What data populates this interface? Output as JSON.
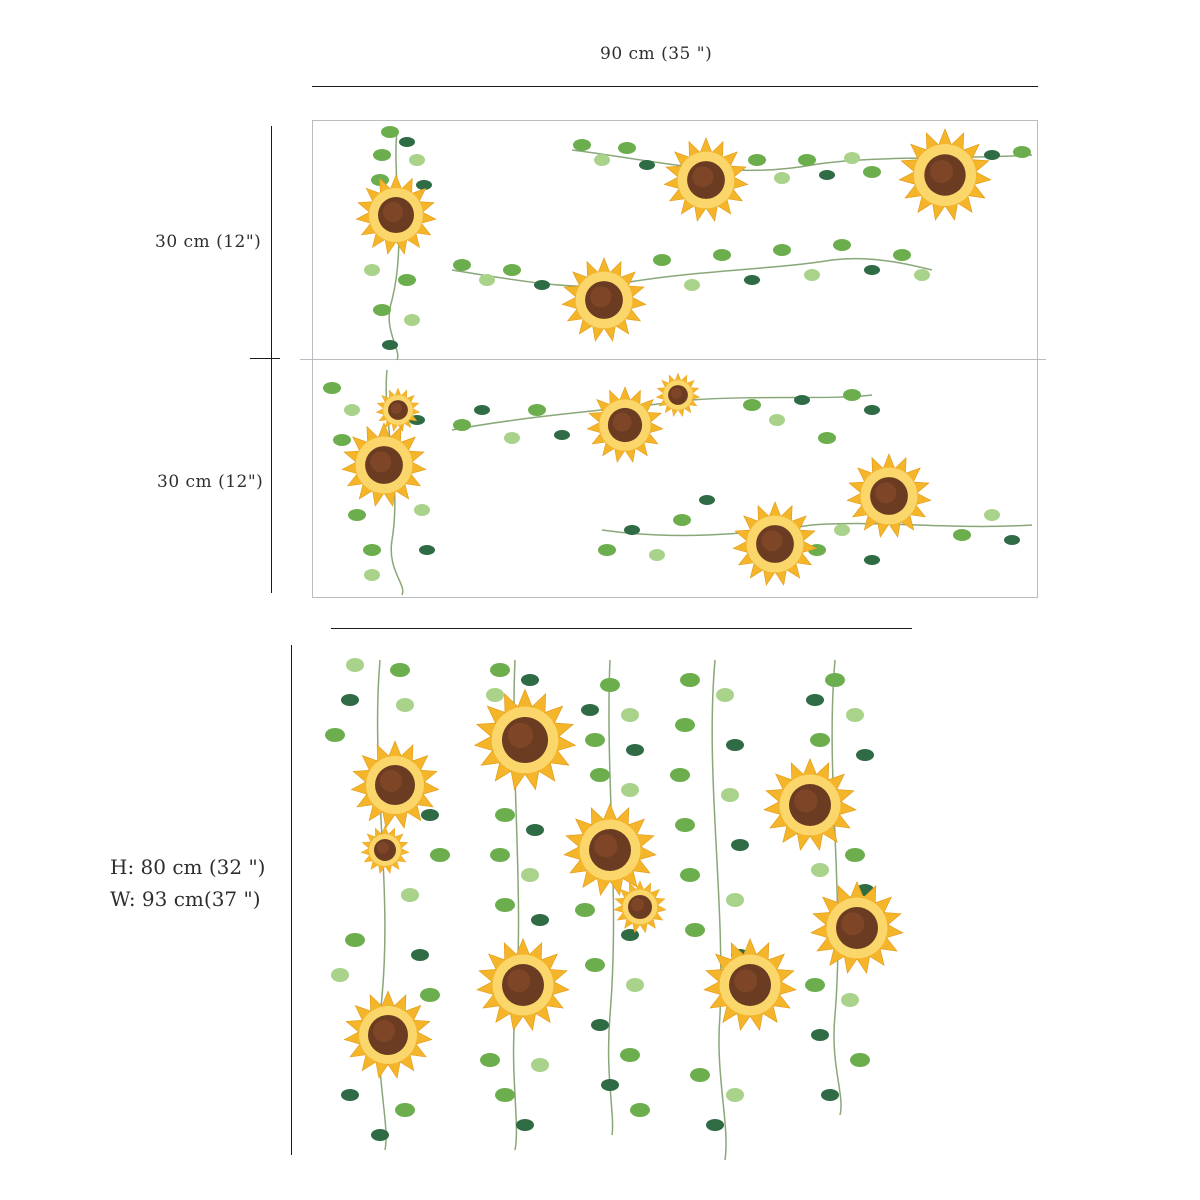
{
  "dimensions": {
    "width_label": "90 cm (35 \")",
    "upper_height_label": "30 cm (12\")",
    "lower_height_label": "30 cm (12\")",
    "total_height_label": "H: 80 cm (32 \")",
    "total_width_label": "W: 93 cm(37 \")"
  },
  "colors": {
    "petal": "#f4b52a",
    "petal_light": "#fbd66a",
    "center": "#6b3b22",
    "leaf": "#6cae4e",
    "leaf_dark": "#2f6b44",
    "leaf_light": "#a9d28a",
    "cut_outline": "#bfe3f2"
  }
}
